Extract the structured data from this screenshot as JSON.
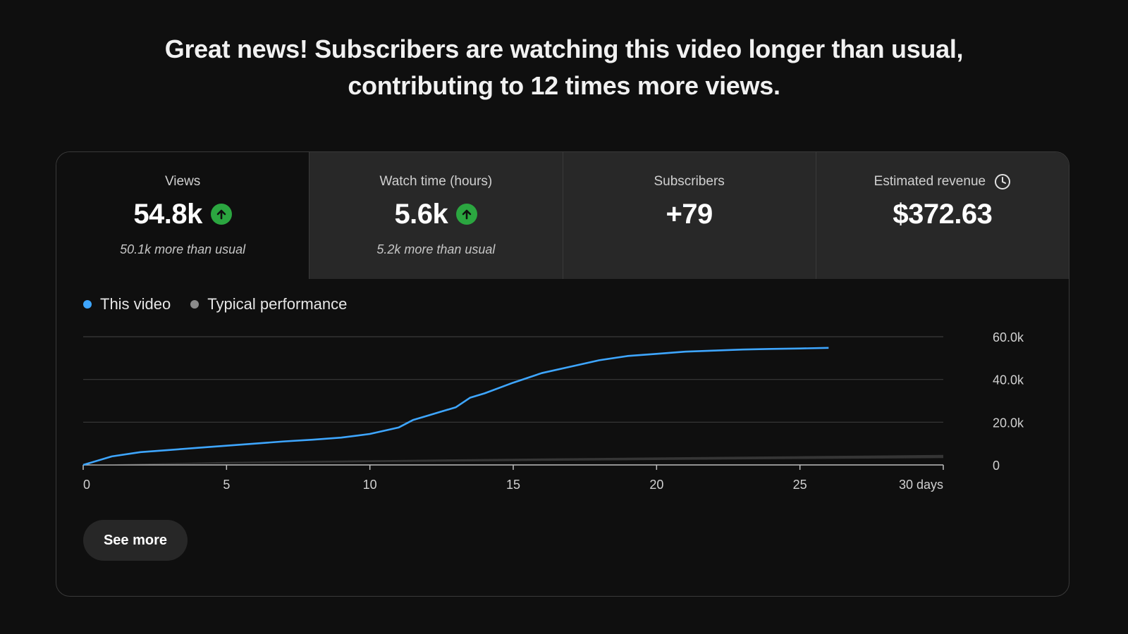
{
  "headline": {
    "line1": "Great news! Subscribers are watching this video longer than usual,",
    "line2": "contributing to 12 times more views."
  },
  "tiles": [
    {
      "label": "Views",
      "value": "54.8k",
      "note": "50.1k more than usual",
      "trend_icon": "arrow-up-icon"
    },
    {
      "label": "Watch time (hours)",
      "value": "5.6k",
      "note": "5.2k more than usual",
      "trend_icon": "arrow-up-icon"
    },
    {
      "label": "Subscribers",
      "value": "+79",
      "note": ""
    },
    {
      "label": "Estimated revenue",
      "value": "$372.63",
      "note": "",
      "info_icon": "clock-icon"
    }
  ],
  "colors": {
    "this_video": "#3ea6ff",
    "typical": "#717171",
    "trend_up": "#2ba640",
    "background": "#0f0f0f",
    "tile_inactive": "#282828"
  },
  "see_more_label": "See more",
  "chart_data": {
    "type": "line",
    "legend": [
      "This video",
      "Typical performance"
    ],
    "xlim": [
      0,
      30
    ],
    "ylim": [
      0,
      60000
    ],
    "x_ticks": [
      0,
      5,
      10,
      15,
      20,
      25,
      30
    ],
    "x_tick_labels": [
      "0",
      "5",
      "10",
      "15",
      "20",
      "25",
      "30 days"
    ],
    "y_ticks": [
      0,
      20000,
      40000,
      60000
    ],
    "y_tick_labels": [
      "0",
      "20.0k",
      "40.0k",
      "60.0k"
    ],
    "grid": true,
    "series": [
      {
        "name": "This video",
        "x": [
          0,
          1,
          2,
          3,
          4,
          5,
          6,
          7,
          8,
          9,
          10,
          11,
          11.5,
          12,
          12.5,
          13,
          13.5,
          14,
          15,
          16,
          17,
          18,
          19,
          20,
          21,
          22,
          23,
          24,
          25,
          26
        ],
        "y": [
          0,
          4000,
          6000,
          7000,
          8000,
          9000,
          10000,
          11000,
          11800,
          12800,
          14500,
          17500,
          21000,
          23000,
          25000,
          27000,
          31500,
          33500,
          38500,
          43000,
          46000,
          49000,
          51000,
          52000,
          53000,
          53500,
          54000,
          54300,
          54500,
          54800
        ]
      },
      {
        "name": "Typical performance",
        "x": [
          0,
          5,
          10,
          15,
          20,
          25,
          30
        ],
        "y_low": [
          0,
          700,
          1300,
          1800,
          2300,
          2800,
          3200
        ],
        "y_high": [
          0,
          1400,
          2200,
          2900,
          3500,
          4100,
          4700
        ]
      }
    ]
  }
}
